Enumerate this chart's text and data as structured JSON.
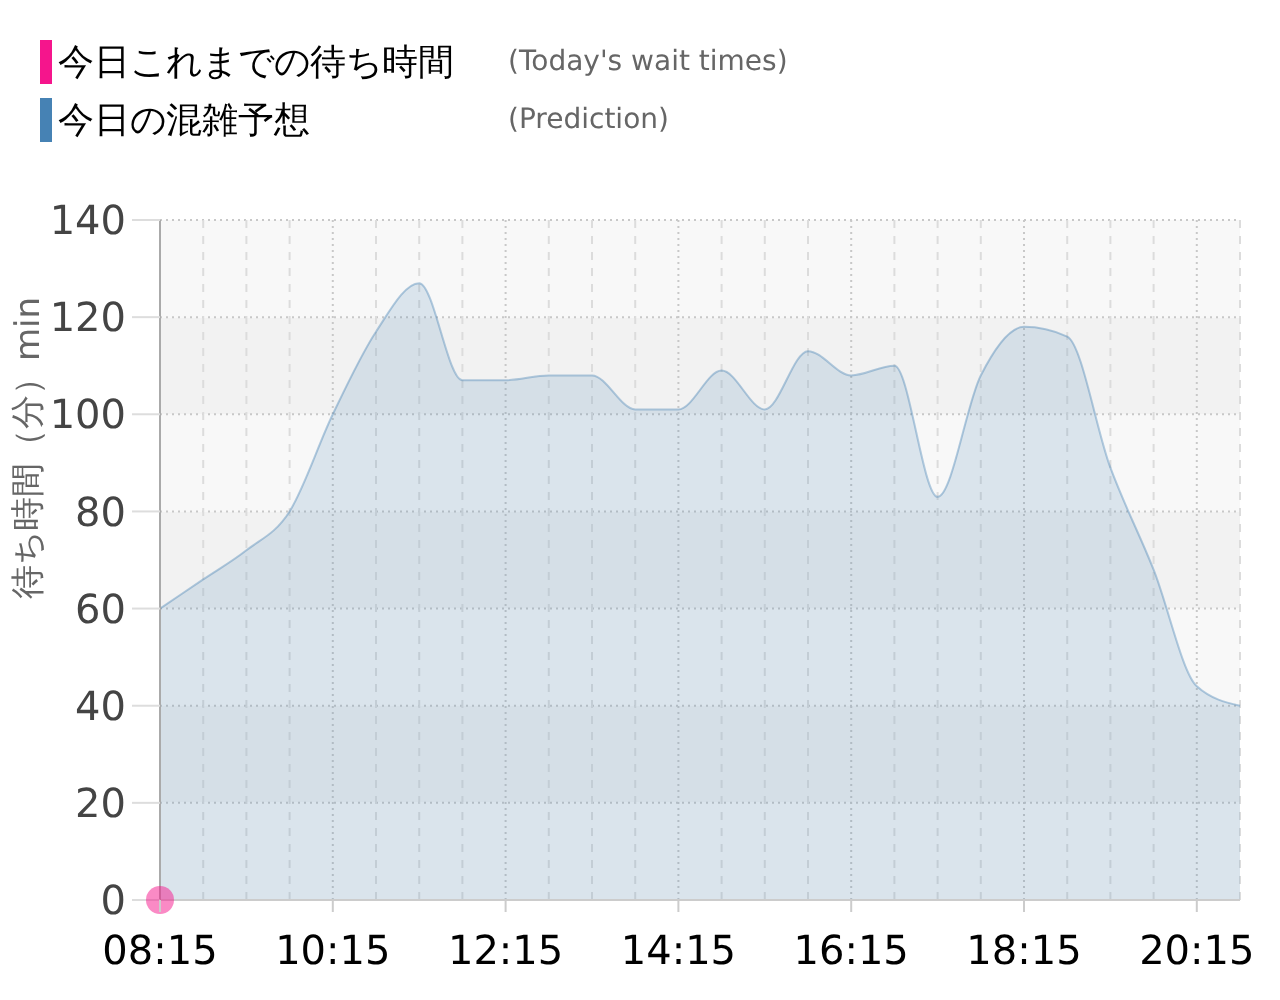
{
  "chart_data": {
    "type": "area",
    "x": [
      8.25,
      8.75,
      9.25,
      9.75,
      10.25,
      10.75,
      11.25,
      11.75,
      12.25,
      12.75,
      13.25,
      13.75,
      14.25,
      14.75,
      15.25,
      15.75,
      16.25,
      16.75,
      17.25,
      17.75,
      18.25,
      18.75,
      19.25,
      19.75,
      20.25,
      20.75
    ],
    "series": [
      {
        "name": "今日これまでの待ち時間",
        "type": "scatter",
        "marker": "circle",
        "color": "#f5158c",
        "x": [
          8.25
        ],
        "values": [
          0
        ]
      },
      {
        "name": "今日の混雑予想",
        "color": "#4682b4",
        "values": [
          60,
          66,
          72,
          80,
          100,
          117,
          127,
          107,
          107,
          108,
          108,
          101,
          101,
          109,
          101,
          113,
          108,
          110,
          83,
          108,
          118,
          116,
          89,
          68,
          44,
          40
        ]
      }
    ],
    "xlim": [
      8.25,
      20.75
    ],
    "xticks": [
      {
        "value": 8.25,
        "label": "08:15"
      },
      {
        "value": 8.75,
        "label": null
      },
      {
        "value": 9.25,
        "label": null
      },
      {
        "value": 9.75,
        "label": null
      },
      {
        "value": 10.25,
        "label": "10:15"
      },
      {
        "value": 10.75,
        "label": null
      },
      {
        "value": 11.25,
        "label": null
      },
      {
        "value": 11.75,
        "label": null
      },
      {
        "value": 12.25,
        "label": "12:15"
      },
      {
        "value": 12.75,
        "label": null
      },
      {
        "value": 13.25,
        "label": null
      },
      {
        "value": 13.75,
        "label": null
      },
      {
        "value": 14.25,
        "label": "14:15"
      },
      {
        "value": 14.75,
        "label": null
      },
      {
        "value": 15.25,
        "label": null
      },
      {
        "value": 15.75,
        "label": null
      },
      {
        "value": 16.25,
        "label": "16:15"
      },
      {
        "value": 16.75,
        "label": null
      },
      {
        "value": 17.25,
        "label": null
      },
      {
        "value": 17.75,
        "label": null
      },
      {
        "value": 18.25,
        "label": "18:15"
      },
      {
        "value": 18.75,
        "label": null
      },
      {
        "value": 19.25,
        "label": null
      },
      {
        "value": 19.75,
        "label": null
      },
      {
        "value": 20.25,
        "label": "20:15"
      },
      {
        "value": 20.75,
        "label": null
      }
    ],
    "ylim": [
      0,
      140
    ],
    "yticks": [
      0,
      20,
      40,
      60,
      80,
      100,
      120,
      140
    ],
    "ylabel": "待ち時間（分）min",
    "annotations": [
      "(Today's wait times)",
      "(Prediction)"
    ],
    "grid": true,
    "legend": "top left"
  }
}
